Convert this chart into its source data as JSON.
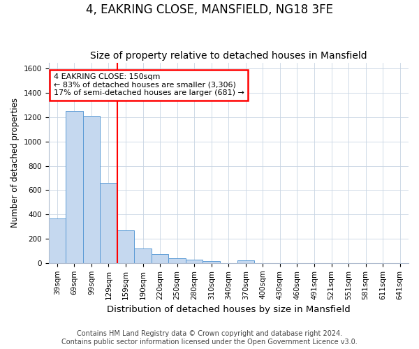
{
  "title": "4, EAKRING CLOSE, MANSFIELD, NG18 3FE",
  "subtitle": "Size of property relative to detached houses in Mansfield",
  "xlabel": "Distribution of detached houses by size in Mansfield",
  "ylabel": "Number of detached properties",
  "categories": [
    "39sqm",
    "69sqm",
    "99sqm",
    "129sqm",
    "159sqm",
    "190sqm",
    "220sqm",
    "250sqm",
    "280sqm",
    "310sqm",
    "340sqm",
    "370sqm",
    "400sqm",
    "430sqm",
    "460sqm",
    "491sqm",
    "521sqm",
    "551sqm",
    "581sqm",
    "611sqm",
    "641sqm"
  ],
  "values": [
    365,
    1250,
    1210,
    660,
    270,
    118,
    72,
    40,
    25,
    15,
    0,
    20,
    0,
    0,
    0,
    0,
    0,
    0,
    0,
    0,
    0
  ],
  "bar_color": "#c5d8ef",
  "bar_edge_color": "#5b9bd5",
  "vline_position": 4,
  "annotation_line1": "4 EAKRING CLOSE: 150sqm",
  "annotation_line2": "← 83% of detached houses are smaller (3,306)",
  "annotation_line3": "17% of semi-detached houses are larger (681) →",
  "annotation_box_color": "white",
  "annotation_box_edge_color": "red",
  "vline_color": "red",
  "ylim": [
    0,
    1650
  ],
  "yticks": [
    0,
    200,
    400,
    600,
    800,
    1000,
    1200,
    1400,
    1600
  ],
  "footer": "Contains HM Land Registry data © Crown copyright and database right 2024.\nContains public sector information licensed under the Open Government Licence v3.0.",
  "title_fontsize": 12,
  "subtitle_fontsize": 10,
  "xlabel_fontsize": 9.5,
  "ylabel_fontsize": 8.5,
  "tick_fontsize": 7.5,
  "annotation_fontsize": 8,
  "footer_fontsize": 7
}
